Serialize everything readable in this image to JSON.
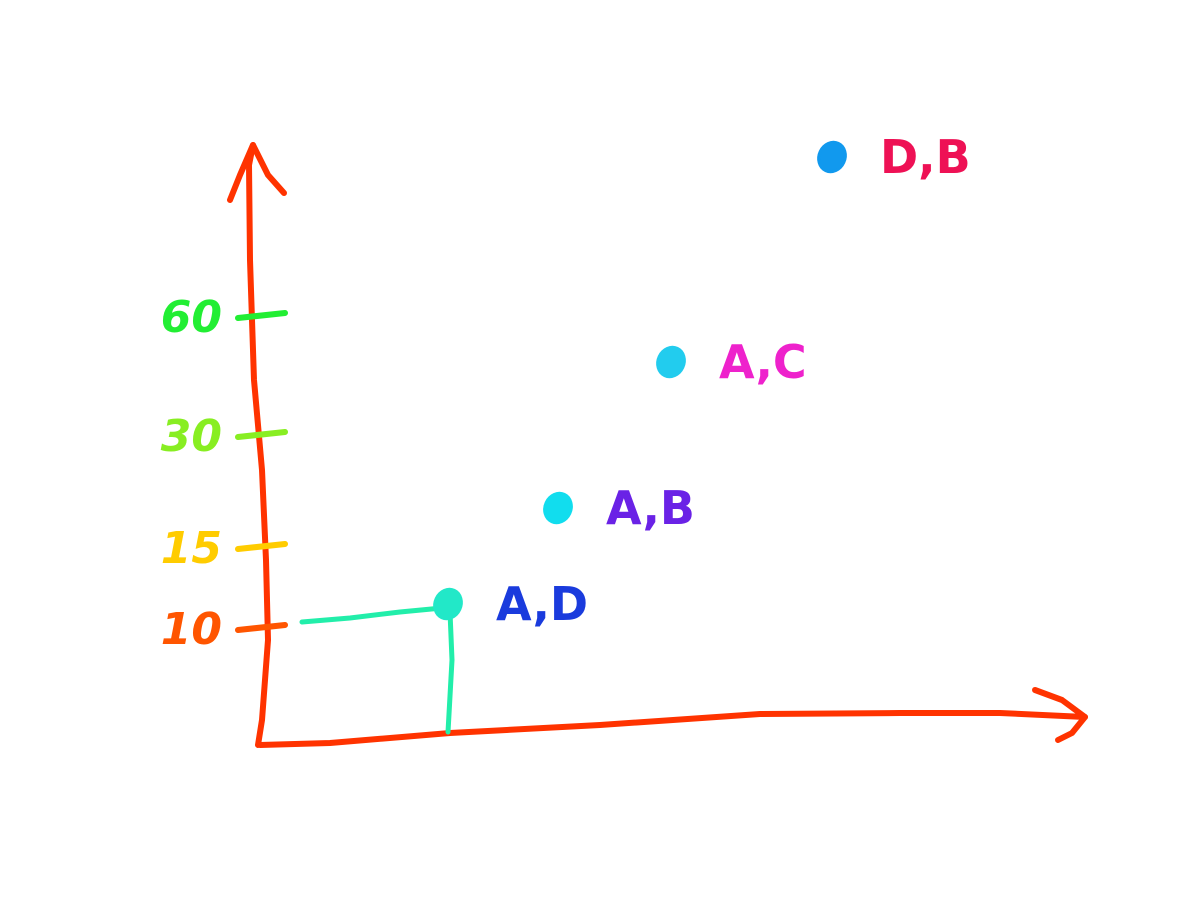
{
  "colors": {
    "axis": "#ff3300",
    "guide": "#22eeaa",
    "tick_colors": [
      "#ff5500",
      "#ffcc00",
      "#88ee22",
      "#22ee33"
    ],
    "label_colors": [
      "#1a3bdd",
      "#6a22e6",
      "#ee22cc",
      "#ee1155"
    ],
    "point_colors": [
      "#22e8c8",
      "#11ddee",
      "#22ccee",
      "#1199ee"
    ]
  },
  "chart_data": {
    "type": "scatter",
    "title": "",
    "xlabel": "",
    "ylabel": "",
    "x_scale": "ordinal",
    "y_scale": "ordinal",
    "y_ticks": [
      "10",
      "15",
      "30",
      "60"
    ],
    "points": [
      {
        "label": "A,D",
        "y": 10
      },
      {
        "label": "A,B",
        "y": 15
      },
      {
        "label": "A,C",
        "y": 30
      },
      {
        "label": "D,B",
        "y": 60
      }
    ],
    "grid": false,
    "legend": "none",
    "guide_lines_point": "A,D"
  }
}
